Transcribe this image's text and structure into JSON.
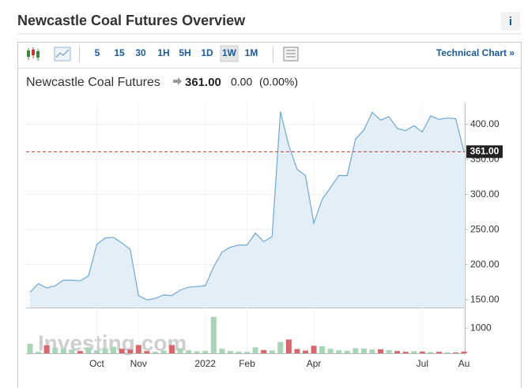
{
  "header": {
    "title": "Newcastle Coal Futures Overview",
    "info": "i"
  },
  "toolbar": {
    "intervals": [
      "5",
      "15",
      "30",
      "1H",
      "5H",
      "1D",
      "1W",
      "1M"
    ],
    "selected": "1W",
    "link": "Technical Chart »"
  },
  "chart_data": {
    "type": "area",
    "name": "Newcastle Coal Futures",
    "price": "361.00",
    "change": "0.00",
    "change_pct": "(0.00%)",
    "categories": [
      null,
      null,
      null,
      null,
      null,
      null,
      null,
      null,
      "Oct",
      null,
      null,
      null,
      null,
      "Nov",
      null,
      null,
      null,
      null,
      null,
      null,
      null,
      "2022",
      null,
      null,
      null,
      null,
      "Feb",
      null,
      null,
      null,
      null,
      null,
      null,
      null,
      "Apr",
      null,
      null,
      null,
      null,
      null,
      null,
      null,
      null,
      null,
      null,
      null,
      null,
      "Jul",
      null,
      null,
      null,
      null,
      "Au"
    ],
    "series": [
      {
        "name": "Newcastle Coal Futures",
        "color": "#6fa8d6",
        "fill": "#e4eef7",
        "values": [
          161,
          173,
          167,
          170,
          178,
          178,
          177,
          184,
          229,
          238,
          239,
          231,
          222,
          156,
          150,
          152,
          157,
          156,
          164,
          168,
          169,
          170,
          197,
          218,
          225,
          228,
          228,
          245,
          233,
          240,
          418,
          370,
          336,
          327,
          259,
          293,
          310,
          327,
          327,
          379,
          392,
          417,
          406,
          411,
          394,
          391,
          398,
          389,
          412,
          407,
          409,
          408,
          361
        ]
      }
    ],
    "ylim": [
      139,
      431
    ],
    "yticks": [
      {
        "value": 150,
        "label": "150.00"
      },
      {
        "value": 200,
        "label": "200.00"
      },
      {
        "value": 250,
        "label": "250.00"
      },
      {
        "value": 300,
        "label": "300.00"
      },
      {
        "value": 350,
        "label": "350.00"
      },
      {
        "value": 400,
        "label": "400.00"
      }
    ],
    "grid": true,
    "price_line": 361,
    "price_line_label": "361.00",
    "price_line_color": "#c0392b",
    "volume": {
      "values": [
        380,
        60,
        320,
        220,
        180,
        150,
        90,
        240,
        120,
        200,
        260,
        180,
        150,
        330,
        90,
        60,
        110,
        330,
        200,
        120,
        80,
        100,
        1450,
        180,
        90,
        70,
        60,
        240,
        130,
        110,
        450,
        550,
        170,
        110,
        300,
        280,
        180,
        120,
        100,
        200,
        190,
        150,
        160,
        130,
        90,
        60,
        80,
        70,
        50,
        60,
        40,
        30,
        70
      ],
      "ylim": [
        0,
        1758
      ],
      "yticks": [
        1000
      ],
      "up_color": "#a8d5b5",
      "down_color": "#d9666a"
    },
    "watermark": "Investing.com"
  }
}
